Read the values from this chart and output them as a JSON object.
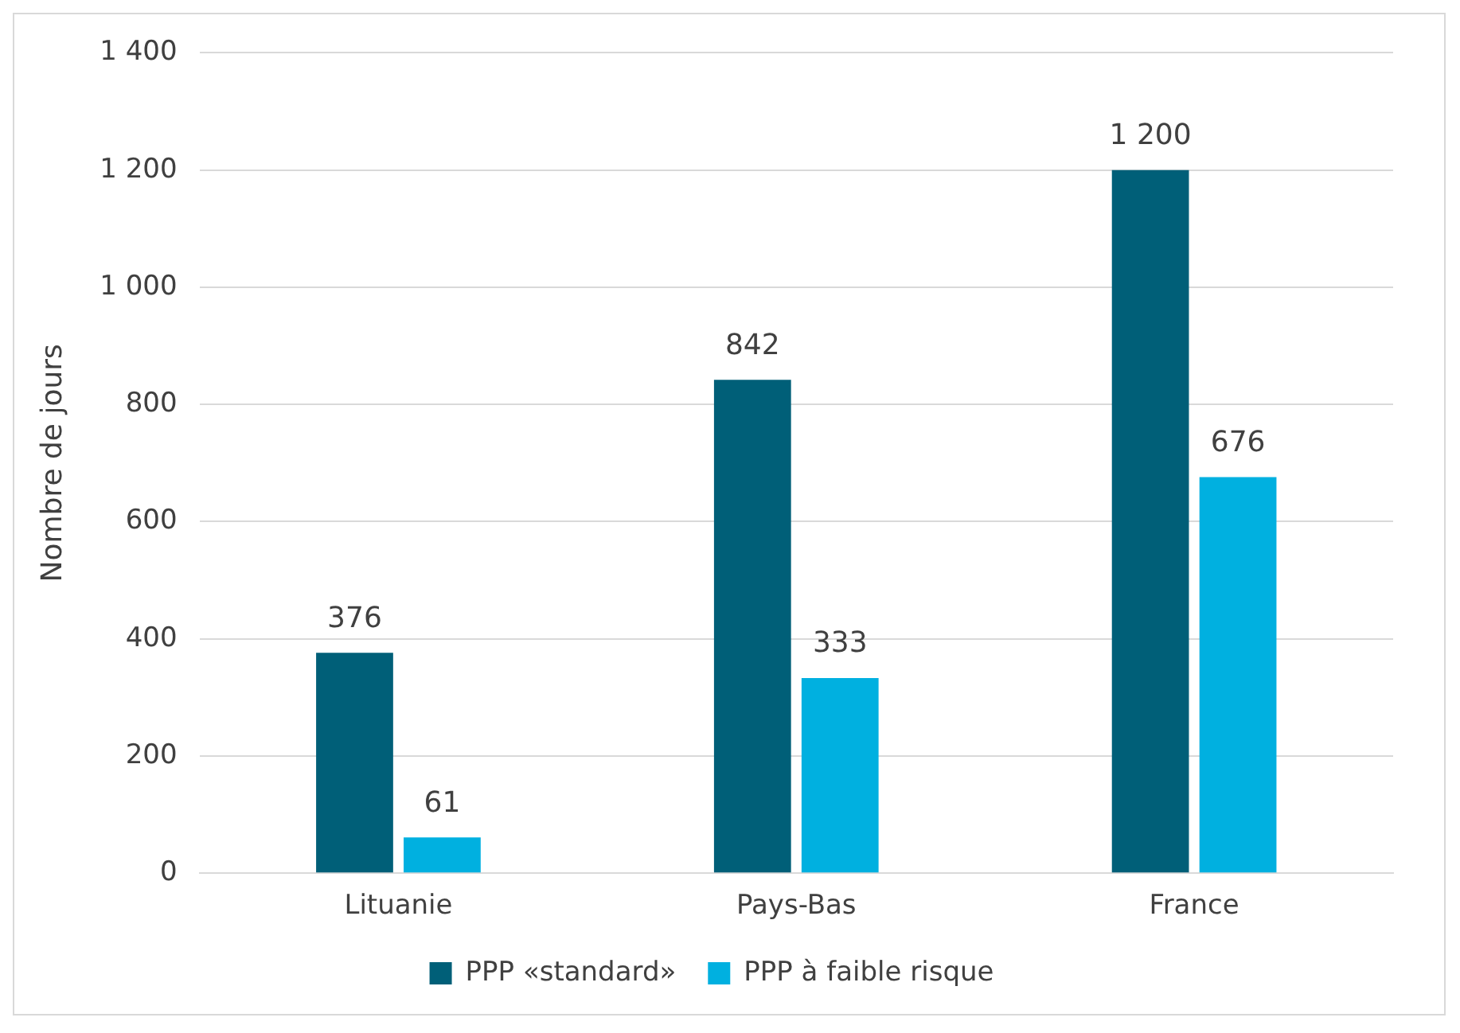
{
  "chart_data": {
    "type": "bar",
    "ylabel": "Nombre de jours",
    "categories": [
      "Lituanie",
      "Pays-Bas",
      "France"
    ],
    "series": [
      {
        "name": "PPP «standard»",
        "color": "#005f78",
        "values": [
          376,
          842,
          1200
        ],
        "value_labels": [
          "376",
          "842",
          "1 200"
        ]
      },
      {
        "name": "PPP à faible risque",
        "color": "#00b0e0",
        "values": [
          61,
          333,
          676
        ],
        "value_labels": [
          "61",
          "333",
          "676"
        ]
      }
    ],
    "ylim": [
      0,
      1400
    ],
    "yticks": [
      0,
      200,
      400,
      600,
      800,
      {
        "value": 1000,
        "label": "1 000"
      },
      {
        "value": 1200,
        "label": "1 200"
      },
      {
        "value": 1400,
        "label": "1 400"
      }
    ],
    "grid": "y",
    "legend": "bottom"
  }
}
